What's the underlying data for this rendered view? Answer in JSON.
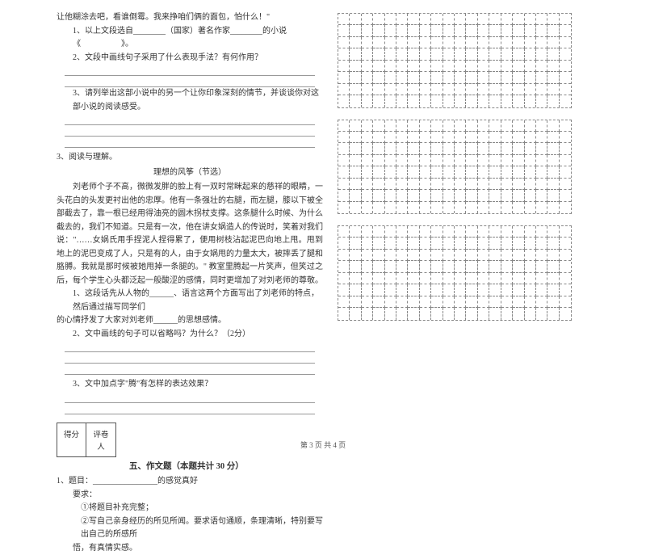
{
  "intro": "让他糊涂去吧，看谁倒霉。我来挣咱们俩的面包，怕什么！\"",
  "q2_1": "1、以上文段选自________（国家）著名作家________的小说《　　　　　》。",
  "q2_2": "2、文段中画线句子采用了什么表现手法？有何作用？",
  "q2_3": "3、请列举出这部小说中的另一个让你印象深刻的情节，并谈谈你对这部小说的阅读感受。",
  "q3_head": "3、阅读与理解。",
  "q3_title": "理想的风筝（节选）",
  "q3_p1": "　　刘老师个子不高，微微发胖的脸上有一双时常眯起来的慈祥的眼睛，一头花白的头发更衬出他的忠厚。他有一条强壮的右腿，而左腿，膝以下被全部截去了，靠一根已经用得油亮的圆木拐杖支撑。这条腿什么时候、为什么截去的，我们不知道。只是有一次，他在讲女娲造人的传说时，笑着对我们说：\"……女娲氏用手捏泥人捏得累了，便用树枝沾起泥巴向地上甩。甩到地上的泥巴变成了人，只是有的人，由于女娲甩的力量太大，被摔丢了腿和胳膊。我就是那时候被她甩掉一条腿的。\" 教室里腾起一片笑声，但笑过之后，每个学生心头都泛起一般酸涩的感情，同时更增加了对刘老师的尊敬。",
  "q3_1a": "1、这段话先从人物的______、语言这两个方面写出了刘老师的特点，然后通过描写同学们",
  "q3_1b": "的心情抒发了大家对刘老师______的思想感情。",
  "q3_2": "2、文中画线的句子可以省略吗？为什么？（2分）",
  "q3_3": "3、文中加点字\"腾\"有怎样的表达效果？",
  "score_labels": {
    "score": "得分",
    "reviewer": "评卷人"
  },
  "section5": "五、作文题（本题共计 30 分）",
  "comp_1": "1、题目：________________的感觉真好",
  "comp_req": "要求：",
  "comp_r1": "①将题目补充完整；",
  "comp_r2": "②写自己亲身经历的所见所闻。要求语句通顺，条理清晰，特别要写出自己的所感所",
  "comp_r3": "悟，有真情实感。",
  "footer": "第 3 页 共 4 页",
  "grid": {
    "blocks": 3,
    "rows": 8,
    "cols": 20
  },
  "colors": {
    "text": "#333333",
    "border": "#888888",
    "bg": "#ffffff"
  }
}
